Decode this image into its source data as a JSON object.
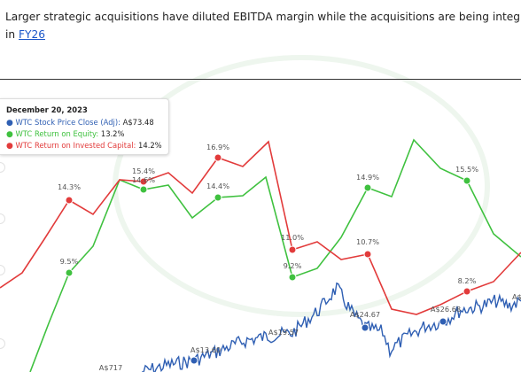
{
  "headline": {
    "text": "Larger strategic acquisitions have diluted EBITDA margin while the acquisitions are being integrate",
    "line2_prefix": "in ",
    "line2_link": "FY26"
  },
  "tooltip": {
    "date": "December 20, 2023",
    "rows": [
      {
        "name": "WTC Stock Price Close (Adj):",
        "value": "A$73.48",
        "color": "#2f5fb3"
      },
      {
        "name": "WTC Return on Equity:",
        "value": "13.2%",
        "color": "#3fc13f"
      },
      {
        "name": "WTC Return on Invested Capital:",
        "value": "14.2%",
        "color": "#e23b3b"
      }
    ]
  },
  "chart_data": {
    "type": "line",
    "series": [
      {
        "name": "WTC Return on Equity",
        "color": "#3fc13f",
        "labels": [
          "9.5%",
          "15.4%",
          "14.4%",
          "9.2%",
          "14.9%",
          "15.5%"
        ]
      },
      {
        "name": "WTC Return on Invested Capital",
        "color": "#e23b3b",
        "labels": [
          "14.3%",
          "14.6%",
          "16.9%",
          "11.0%",
          "10.7%",
          "8.2%"
        ]
      },
      {
        "name": "WTC Stock Price Close (Adj)",
        "color": "#2f5fb3",
        "labels": [
          "A$717",
          "A$13.60",
          "A$19.57",
          "A$24.67",
          "A$26.68",
          "A$3"
        ]
      }
    ]
  },
  "colors": {
    "link": "#1a56c9",
    "equity": "#3fc13f",
    "roic": "#e23b3b",
    "price": "#2f5fb3"
  }
}
